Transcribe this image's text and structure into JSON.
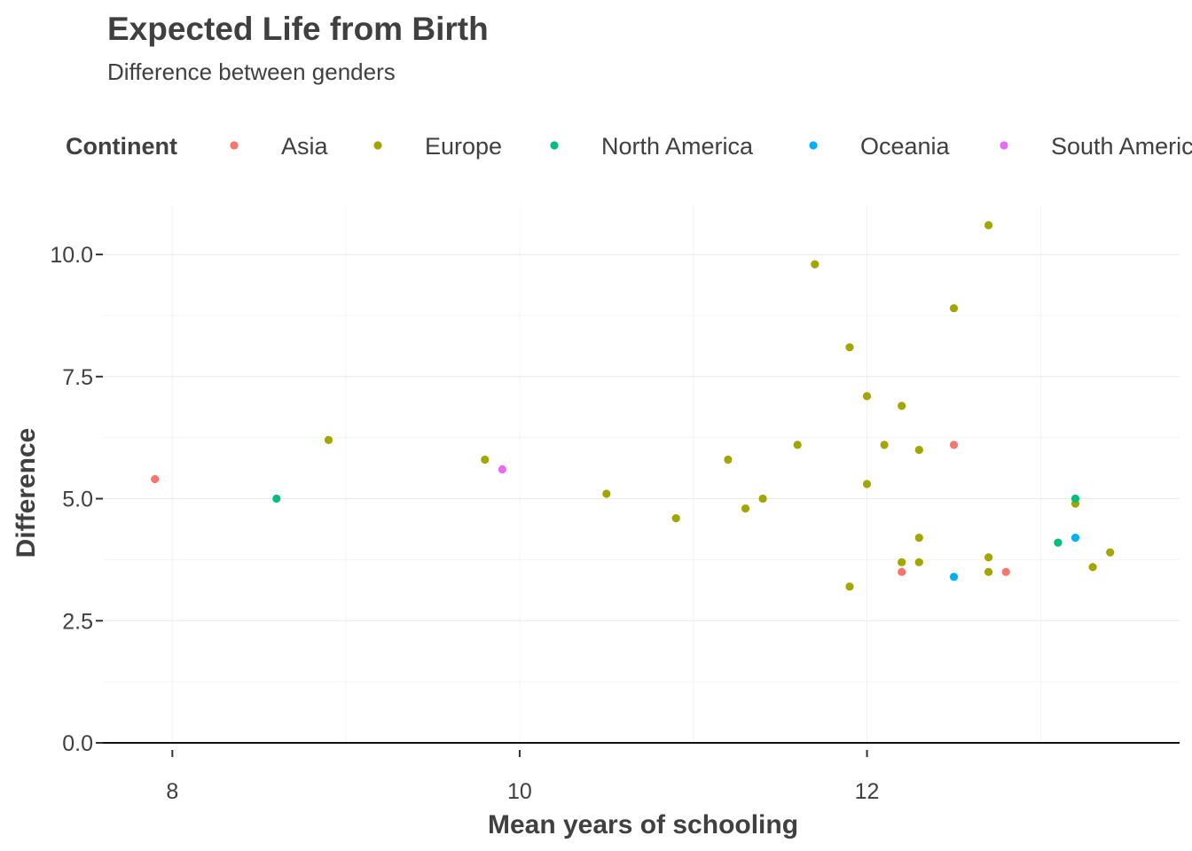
{
  "chart_data": {
    "type": "scatter",
    "title": "Expected Life from Birth",
    "subtitle": "Difference between genders",
    "xlabel": "Mean years of schooling",
    "ylabel": "Difference",
    "legend_title": "Continent",
    "legend_position": "top",
    "grid": true,
    "xlim": [
      7.6,
      13.8
    ],
    "ylim": [
      0,
      11
    ],
    "x_ticks": [
      8,
      10,
      12
    ],
    "y_ticks": [
      0,
      2.5,
      5,
      7.5,
      10
    ],
    "x_tick_labels": [
      "8",
      "10",
      "12"
    ],
    "y_tick_labels": [
      "0.0",
      "2.5",
      "5.0",
      "7.5",
      "10.0"
    ],
    "series": [
      {
        "name": "Asia",
        "color": "#F8766D",
        "points": [
          [
            7.9,
            5.4
          ],
          [
            12.2,
            3.5
          ],
          [
            12.5,
            6.1
          ],
          [
            12.8,
            3.5
          ]
        ]
      },
      {
        "name": "Europe",
        "color": "#A3A500",
        "points": [
          [
            8.9,
            6.2
          ],
          [
            9.8,
            5.8
          ],
          [
            10.5,
            5.1
          ],
          [
            10.9,
            4.6
          ],
          [
            11.2,
            5.8
          ],
          [
            11.3,
            4.8
          ],
          [
            11.4,
            5.0
          ],
          [
            11.6,
            6.1
          ],
          [
            11.7,
            9.8
          ],
          [
            11.9,
            8.1
          ],
          [
            11.9,
            3.2
          ],
          [
            12.0,
            7.1
          ],
          [
            12.0,
            5.3
          ],
          [
            12.1,
            6.1
          ],
          [
            12.2,
            6.9
          ],
          [
            12.2,
            3.7
          ],
          [
            12.3,
            6.0
          ],
          [
            12.3,
            4.2
          ],
          [
            12.3,
            3.7
          ],
          [
            12.5,
            8.9
          ],
          [
            12.7,
            10.6
          ],
          [
            12.7,
            3.8
          ],
          [
            12.7,
            3.5
          ],
          [
            13.2,
            4.9
          ],
          [
            13.3,
            3.6
          ],
          [
            13.4,
            3.9
          ]
        ]
      },
      {
        "name": "North America",
        "color": "#00BF7D",
        "points": [
          [
            8.6,
            5.0
          ],
          [
            13.1,
            4.1
          ],
          [
            13.2,
            5.0
          ]
        ]
      },
      {
        "name": "Oceania",
        "color": "#00B0F6",
        "points": [
          [
            12.5,
            3.4
          ],
          [
            13.2,
            4.2
          ]
        ]
      },
      {
        "name": "South America",
        "color": "#E76BF3",
        "points": [
          [
            9.9,
            5.6
          ]
        ]
      }
    ]
  }
}
